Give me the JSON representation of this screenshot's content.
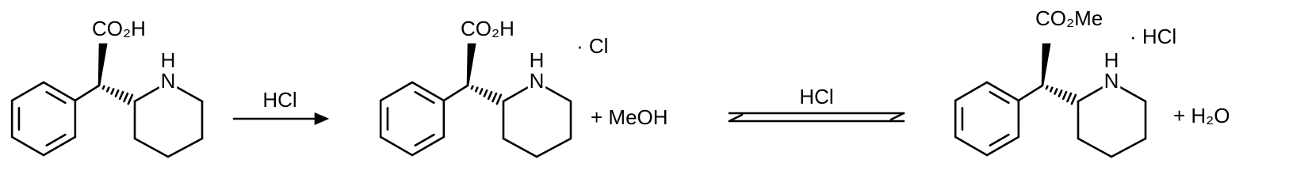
{
  "molecules": [
    {
      "acid": "CO₂H",
      "amine_h": "H",
      "amine_n": "N"
    },
    {
      "acid": "CO₂H",
      "amine_h": "H",
      "amine_n": "N",
      "salt": "· Cl"
    },
    {
      "acid": "CO₂Me",
      "amine_h": "H",
      "amine_n": "N",
      "salt": "· HCl"
    }
  ],
  "arrows": [
    {
      "reagent": "HCl"
    },
    {
      "reagent": "HCl"
    }
  ],
  "byproducts": [
    "+ MeOH",
    "+ H₂O"
  ]
}
